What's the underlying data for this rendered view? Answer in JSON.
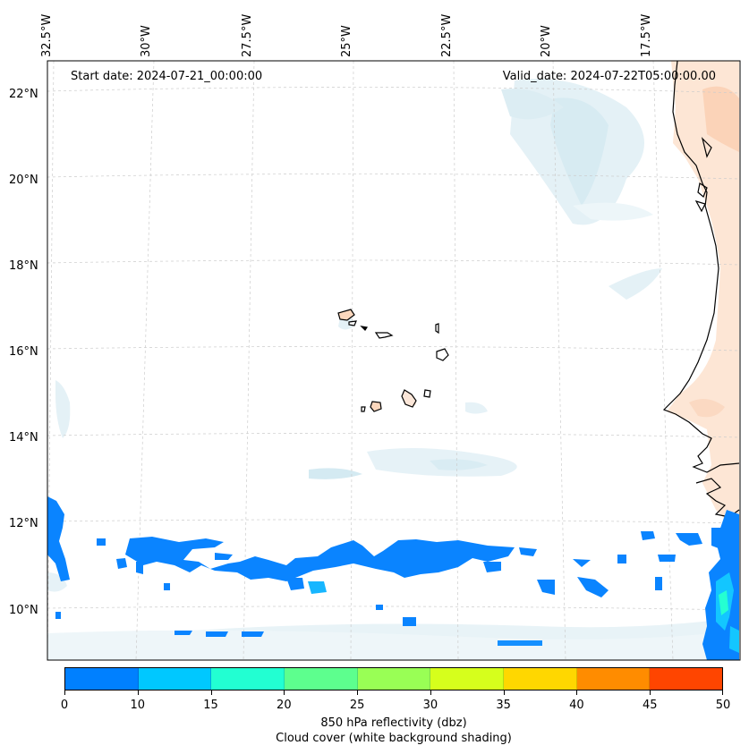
{
  "header": {
    "start_date": "Start date: 2024-07-21_00:00:00",
    "valid_date": "Valid_date: 2024-07-22T05:00:00.00"
  },
  "longitude_labels": [
    "32.5°W",
    "30°W",
    "27.5°W",
    "25°W",
    "22.5°W",
    "20°W",
    "17.5°W"
  ],
  "latitude_labels": [
    "22°N",
    "20°N",
    "18°N",
    "16°N",
    "14°N",
    "12°N",
    "10°N"
  ],
  "colorbar": {
    "colors": [
      "#0080ff",
      "#00c8ff",
      "#22ffd2",
      "#5dff8e",
      "#99ff55",
      "#d6ff1c",
      "#ffd700",
      "#ff8c00",
      "#ff4500"
    ],
    "ticks": [
      "0",
      "10",
      "15",
      "20",
      "25",
      "30",
      "35",
      "40",
      "45",
      "50"
    ],
    "label": "850 hPa reflectivity (dbz)",
    "sublabel": "Cloud cover (white background shading)"
  },
  "colors": {
    "cloud_light": "#e6f3f8",
    "cloud_medium": "#cfe7ef",
    "land_shading": "#fde0cc",
    "reflectivity_low": "#0080ff",
    "reflectivity_mid": "#00c8ff",
    "reflectivity_high": "#22ffd2"
  }
}
